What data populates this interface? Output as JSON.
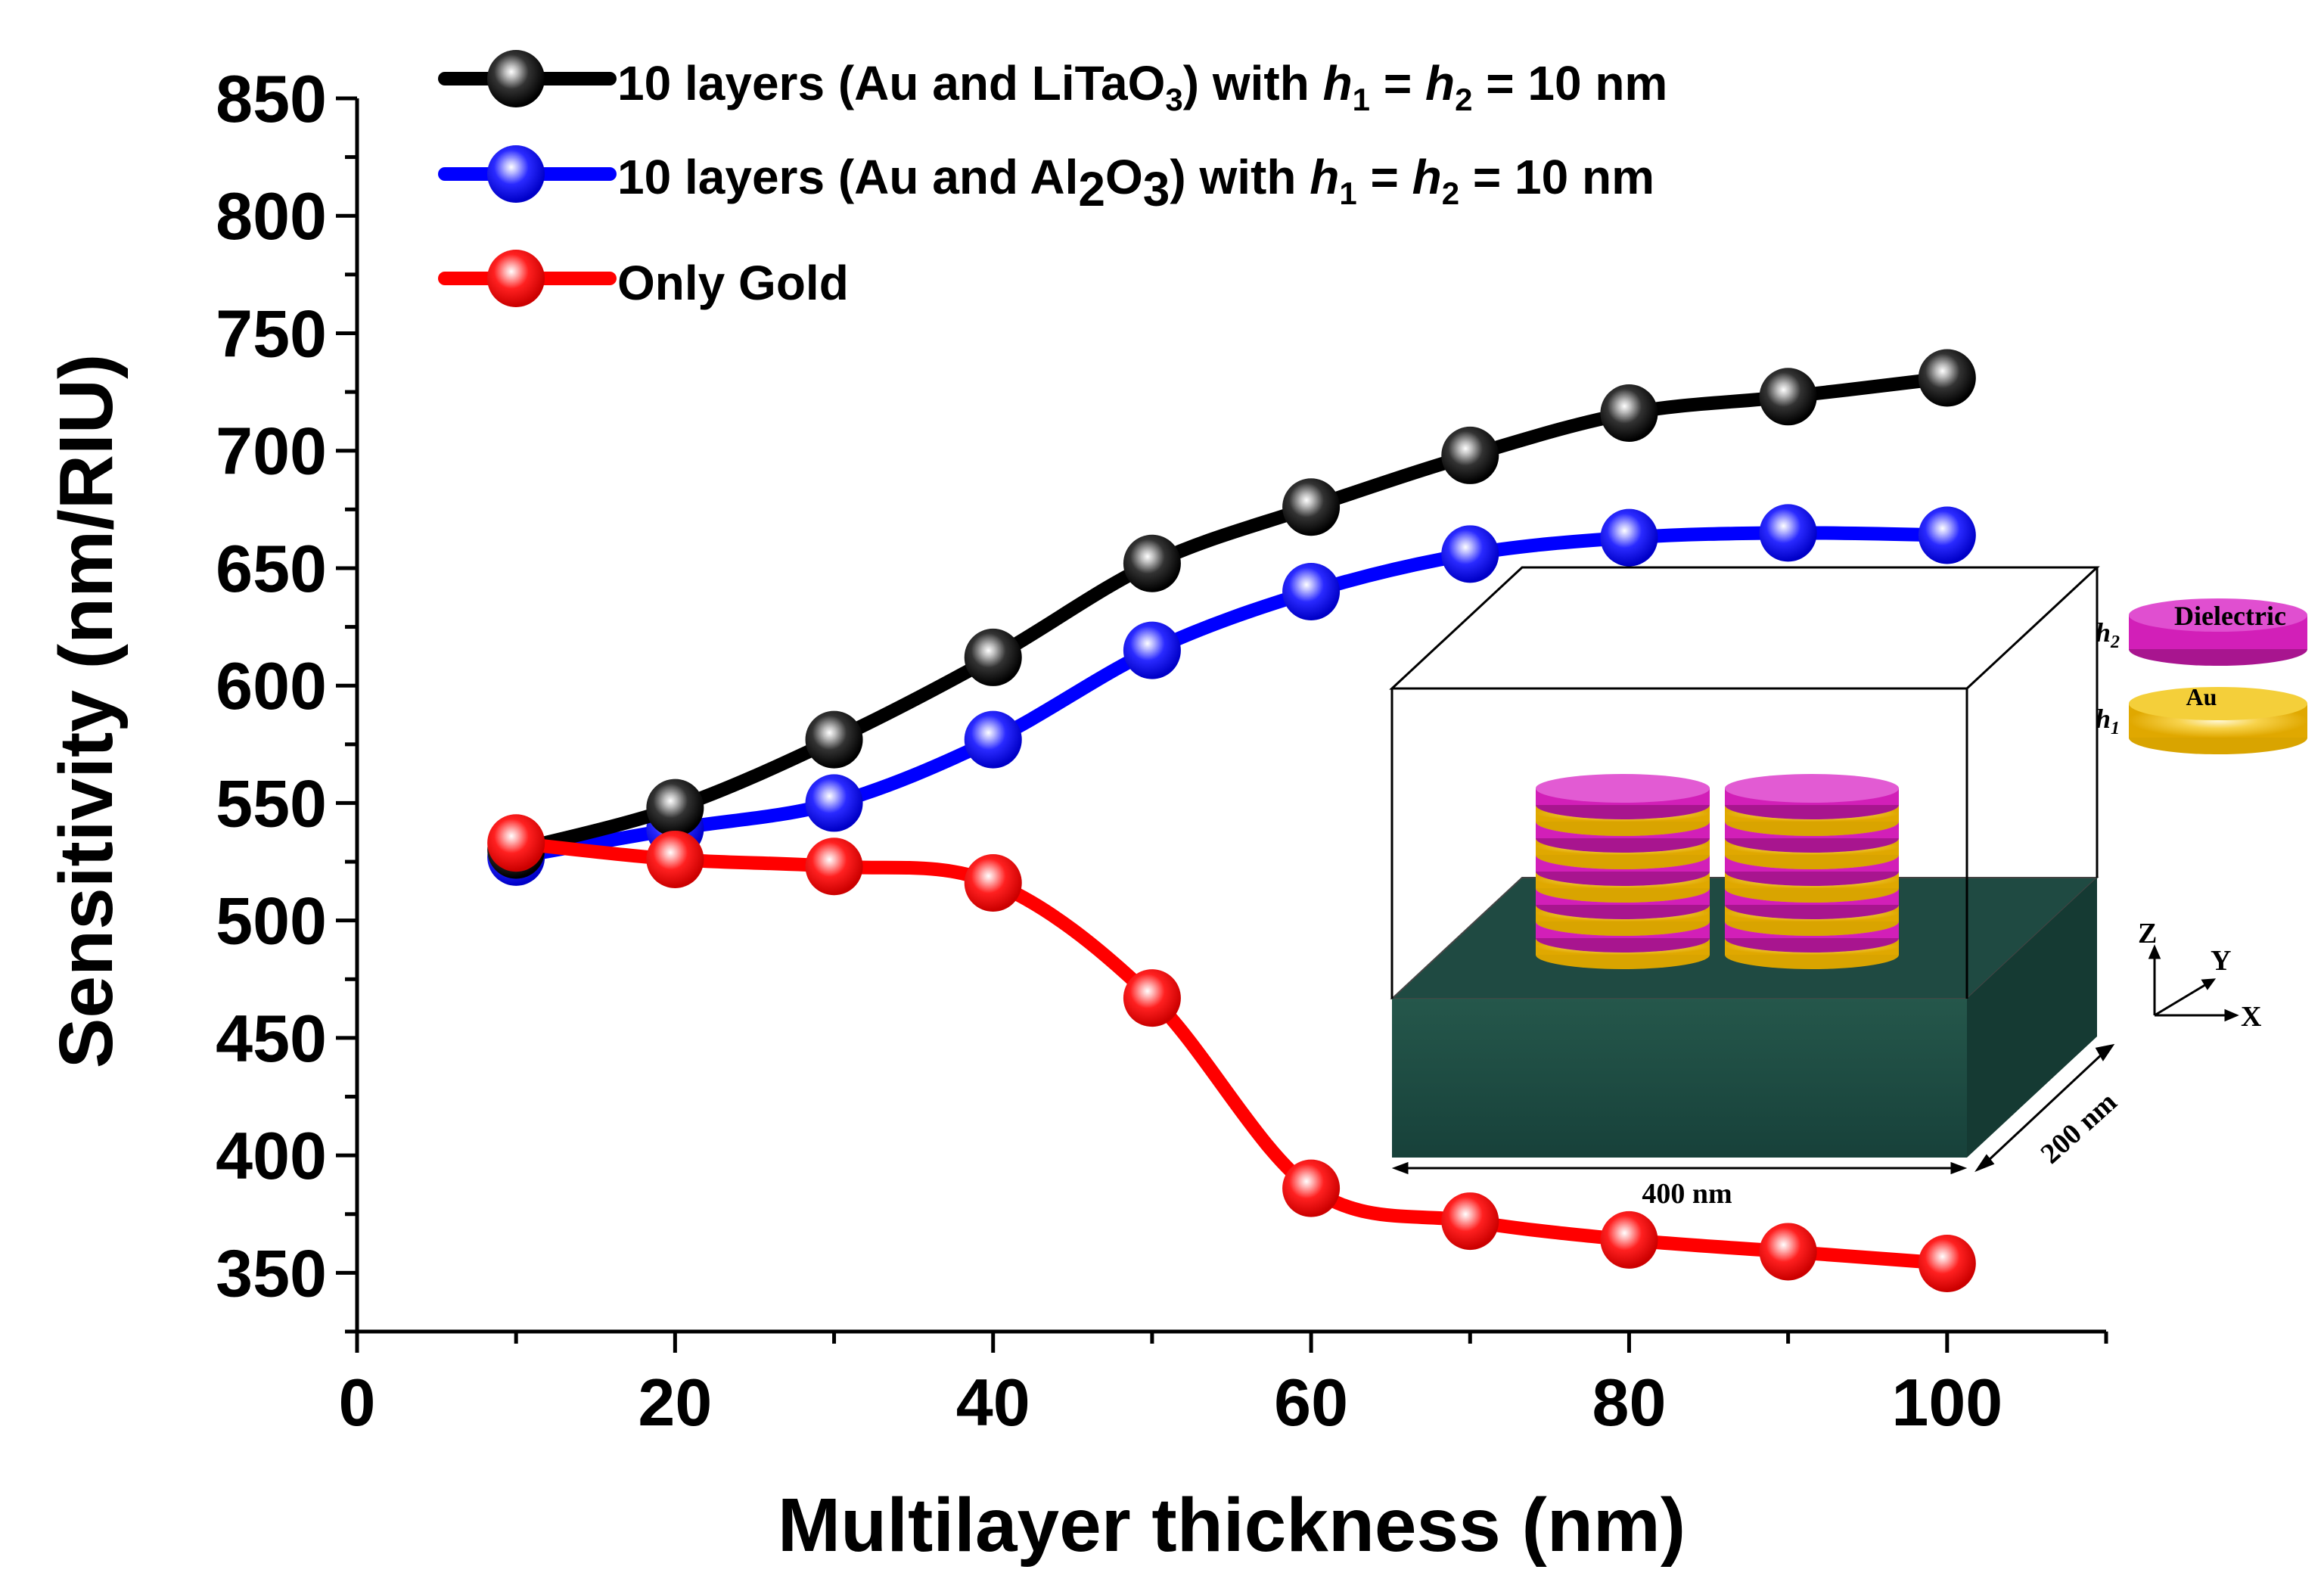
{
  "chart_data": {
    "type": "line",
    "title": "",
    "xlabel": "Multilayer thickness (nm)",
    "ylabel": "Sensitivity (nm/RIU)",
    "xlim": [
      0,
      110
    ],
    "ylim": [
      325,
      850
    ],
    "xticks": [
      0,
      20,
      40,
      60,
      80,
      100
    ],
    "yticks": [
      350,
      400,
      450,
      500,
      550,
      600,
      650,
      700,
      750,
      800,
      850
    ],
    "x": [
      10,
      20,
      30,
      40,
      50,
      60,
      70,
      80,
      90,
      100
    ],
    "series": [
      {
        "name": "10 layers (Au and LiTaO3) with h1 = h2 = 10 nm",
        "legend": {
          "prefix": "10 layers (Au and LiTaO",
          "sub1": "3",
          "mid": ") with ",
          "h1": "h",
          "h1sub": "1",
          "eq1": " = ",
          "h2": "h",
          "h2sub": "2",
          "suffix": " = 10 nm"
        },
        "color": "#000000",
        "values": [
          530,
          548,
          577,
          612,
          652,
          676,
          698,
          716,
          723,
          731
        ]
      },
      {
        "name": "10 layers (Au and Al2O3) with h1 = h2 = 10 nm",
        "legend": {
          "prefix": "10 layers (Au and Al",
          "sub1": "2",
          "mid": "O",
          "sub2": "3",
          "mid2": ") with ",
          "h1": "h",
          "h1sub": "1",
          "eq1": " = ",
          "h2": "h",
          "h2sub": "2",
          "suffix": " = 10 nm"
        },
        "color": "#0000ff",
        "values": [
          527,
          539,
          550,
          577,
          615,
          640,
          656,
          663,
          665,
          664
        ]
      },
      {
        "name": "Only Gold",
        "legend": {
          "prefix": "Only Gold"
        },
        "color": "#ff0000",
        "values": [
          533,
          526,
          523,
          516,
          467,
          386,
          372,
          364,
          359,
          354
        ]
      }
    ],
    "legend_position": "top-left",
    "grid": false,
    "inset": {
      "dielectric_label": "Dielectric",
      "au_label": "Au",
      "h1_label": "h",
      "h1_sub": "1",
      "h2_label": "h",
      "h2_sub": "2",
      "z_label": "Z",
      "y_label": "Y",
      "x_label": "X",
      "width_label": "400 nm",
      "depth_label": "200 nm",
      "substrate_color": "#1f4f45",
      "gold_color": "#f2c21a",
      "dielectric_color": "#d21fb8"
    }
  }
}
